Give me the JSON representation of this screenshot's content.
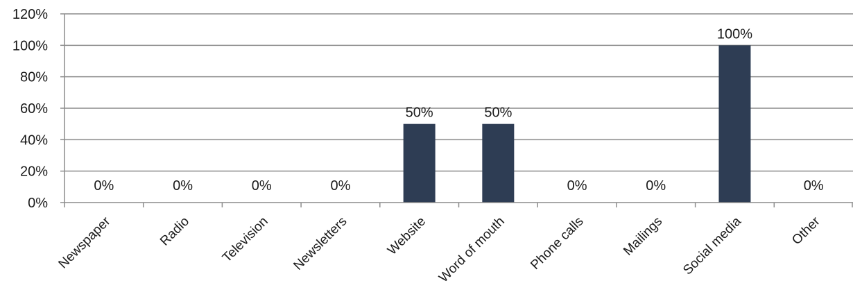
{
  "chart_data": {
    "type": "bar",
    "categories": [
      "Newspaper",
      "Radio",
      "Television",
      "Newsletters",
      "Website",
      "Word of mouth",
      "Phone calls",
      "Mailings",
      "Social media",
      "Other"
    ],
    "values": [
      0,
      0,
      0,
      0,
      50,
      50,
      0,
      0,
      100,
      0
    ],
    "data_labels": [
      "0%",
      "0%",
      "0%",
      "0%",
      "50%",
      "50%",
      "0%",
      "0%",
      "100%",
      "0%"
    ],
    "yticks": [
      "0%",
      "20%",
      "40%",
      "60%",
      "80%",
      "100%",
      "120%"
    ],
    "ylim": [
      0,
      120
    ],
    "grid": true,
    "legend": "none",
    "title": "",
    "xlabel": "",
    "ylabel": "",
    "colors": {
      "bar": "#2e3d54",
      "grid": "#8c8c8c",
      "axis": "#8c8c8c"
    }
  }
}
